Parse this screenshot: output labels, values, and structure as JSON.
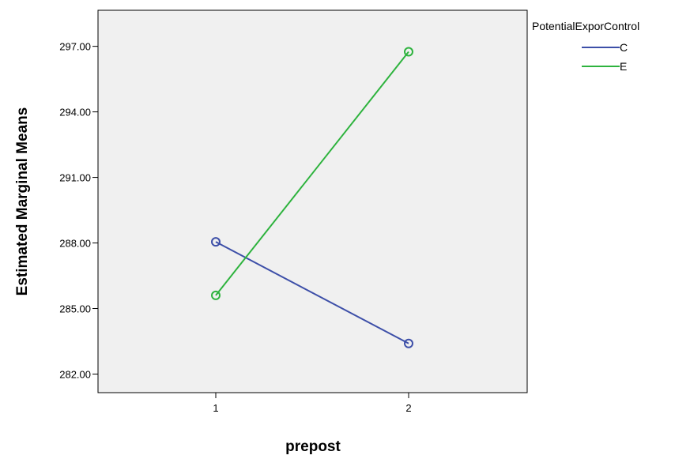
{
  "chart_data": {
    "type": "line",
    "xlabel": "prepost",
    "ylabel": "Estimated Marginal Means",
    "categories": [
      "1",
      "2"
    ],
    "ylim": [
      281.15,
      298.65
    ],
    "yticks": [
      282.0,
      285.0,
      288.0,
      291.0,
      294.0,
      297.0
    ],
    "ytick_labels": [
      "282.00",
      "285.00",
      "288.00",
      "291.00",
      "294.00",
      "297.00"
    ],
    "grid": false,
    "legend": {
      "title": "PotentialExporControl",
      "position": "top-right"
    },
    "series": [
      {
        "name": "C",
        "color": "#3d4fa8",
        "values": [
          288.05,
          283.4
        ]
      },
      {
        "name": "E",
        "color": "#2eb33e",
        "values": [
          285.6,
          296.75
        ]
      }
    ]
  },
  "colors": {
    "plot_background": "#f0f0f0",
    "axis": "#000000"
  }
}
